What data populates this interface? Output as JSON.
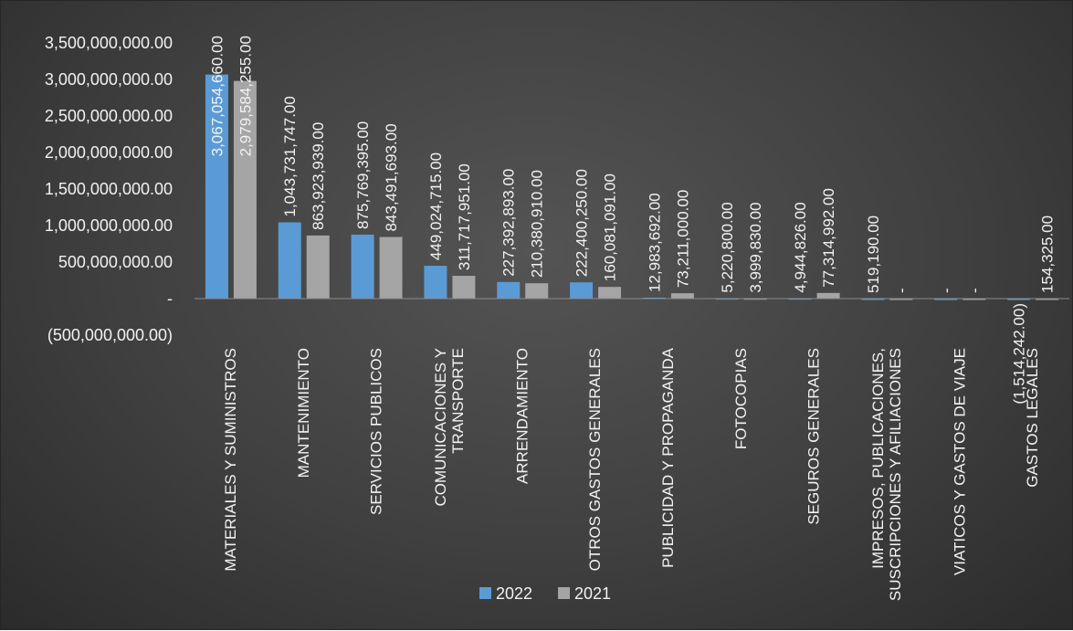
{
  "chart_data": {
    "type": "bar",
    "title": "",
    "xlabel": "",
    "ylabel": "",
    "ylim": [
      -500000000,
      3500000000
    ],
    "grid": false,
    "legend_position": "bottom",
    "y_ticks": [
      {
        "value": 3500000000,
        "label": "3,500,000,000.00"
      },
      {
        "value": 3000000000,
        "label": "3,000,000,000.00"
      },
      {
        "value": 2500000000,
        "label": "2,500,000,000.00"
      },
      {
        "value": 2000000000,
        "label": "2,000,000,000.00"
      },
      {
        "value": 1500000000,
        "label": "1,500,000,000.00"
      },
      {
        "value": 1000000000,
        "label": "1,000,000,000.00"
      },
      {
        "value": 500000000,
        "label": "500,000,000.00"
      },
      {
        "value": 0,
        "label": "-"
      },
      {
        "value": -500000000,
        "label": "(500,000,000.00)"
      }
    ],
    "categories": [
      [
        "MATERIALES Y SUMINISTROS"
      ],
      [
        "MANTENIMIENTO"
      ],
      [
        "SERVICIOS PUBLICOS"
      ],
      [
        "COMUNICACIONES Y",
        "TRANSPORTE"
      ],
      [
        "ARRENDAMIENTO"
      ],
      [
        "OTROS GASTOS GENERALES"
      ],
      [
        "PUBLICIDAD Y PROPAGANDA"
      ],
      [
        "FOTOCOPIAS"
      ],
      [
        "SEGUROS GENERALES"
      ],
      [
        "IMPRESOS, PUBLICACIONES,",
        "SUSCRIPCIONES Y AFILIACIONES"
      ],
      [
        "VIATICOS Y GASTOS DE VIAJE"
      ],
      [
        "GASTOS LEGALES"
      ]
    ],
    "series": [
      {
        "name": "2022",
        "color": "#5b9bd5",
        "values": [
          3067054660,
          1043731747,
          875769395,
          449024715,
          227392893,
          222400250,
          12983692,
          5220800,
          4944826,
          519190,
          0,
          -1514242
        ],
        "labels": [
          "3,067,054,660.00",
          "1,043,731,747.00",
          "875,769,395.00",
          "449,024,715.00",
          "227,392,893.00",
          "222,400,250.00",
          "12,983,692.00",
          "5,220,800.00",
          "4,944,826.00",
          "519,190.00",
          "-",
          "(1,514,242.00)"
        ]
      },
      {
        "name": "2021",
        "color": "#a5a5a5",
        "values": [
          2979584255,
          863923939,
          843491693,
          311717951,
          210380910,
          160081091,
          73211000,
          3999830,
          77314992,
          0,
          0,
          154325
        ],
        "labels": [
          "2,979,584,255.00",
          "863,923,939.00",
          "843,491,693.00",
          "311,717,951.00",
          "210,380,910.00",
          "160,081,091.00",
          "73,211,000.00",
          "3,999,830.00",
          "77,314,992.00",
          "-",
          "-",
          "154,325.00"
        ]
      }
    ]
  }
}
